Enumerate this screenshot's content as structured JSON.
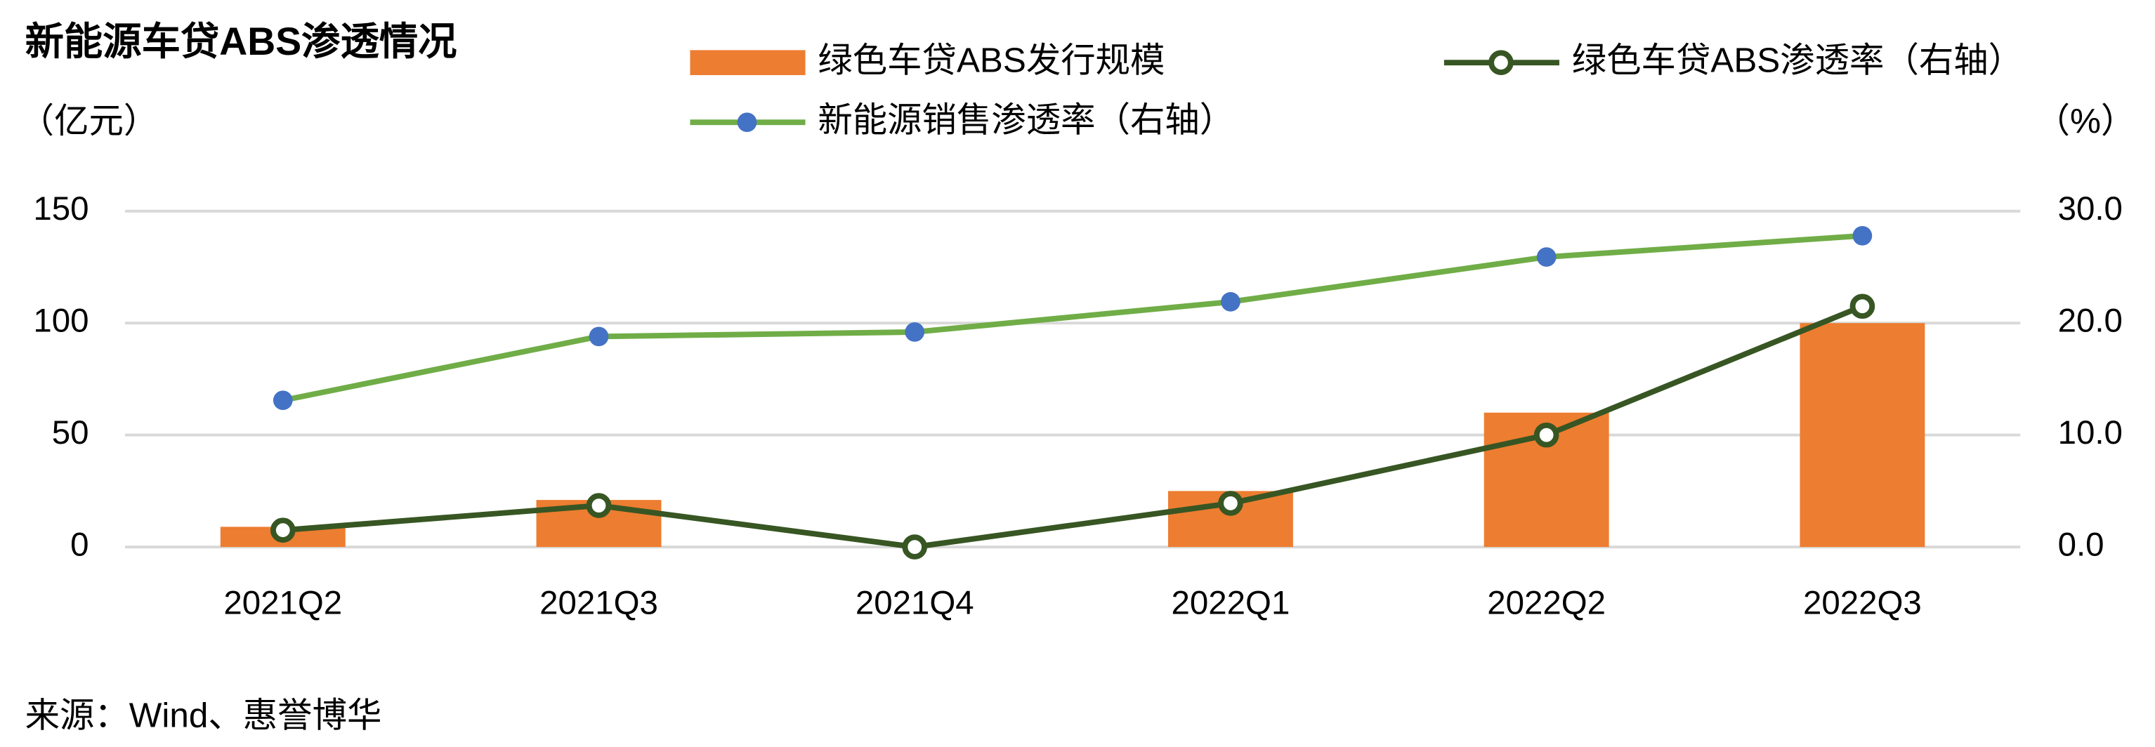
{
  "chart_data": {
    "type": "bar-line",
    "title": "新能源车贷ABS渗透情况",
    "y_unit": "（亿元）",
    "y2_unit": "（%）",
    "source": "来源：Wind、惠誉博华",
    "categories": [
      "2021Q2",
      "2021Q3",
      "2021Q4",
      "2022Q1",
      "2022Q2",
      "2022Q3"
    ],
    "series": [
      {
        "name": "绿色车贷ABS发行规模",
        "type": "bar",
        "color": "#ed7d31",
        "values": [
          9,
          21,
          0,
          25,
          60,
          100
        ]
      },
      {
        "name": "绿色车贷ABS渗透率（右轴）",
        "type": "line",
        "axis": "y2",
        "color": "#375623",
        "marker_fill": "#ffffff",
        "values": [
          1.5,
          3.7,
          0.0,
          3.9,
          10.0,
          21.5
        ]
      },
      {
        "name": "新能源销售渗透率（右轴）",
        "type": "line",
        "axis": "y2",
        "color": "#70ad47",
        "marker_fill": "#4472c4",
        "values": [
          13.1,
          18.8,
          19.2,
          21.9,
          25.9,
          27.8
        ]
      }
    ],
    "ylim": [
      0,
      150
    ],
    "yticks": [
      0,
      50,
      100,
      150
    ],
    "y2lim": [
      0,
      30
    ],
    "y2ticks": [
      {
        "value": 0,
        "label": "0.0"
      },
      {
        "value": 10,
        "label": "10.0"
      },
      {
        "value": 20,
        "label": "20.0"
      },
      {
        "value": 30,
        "label": "30.0"
      }
    ],
    "grid": true
  }
}
